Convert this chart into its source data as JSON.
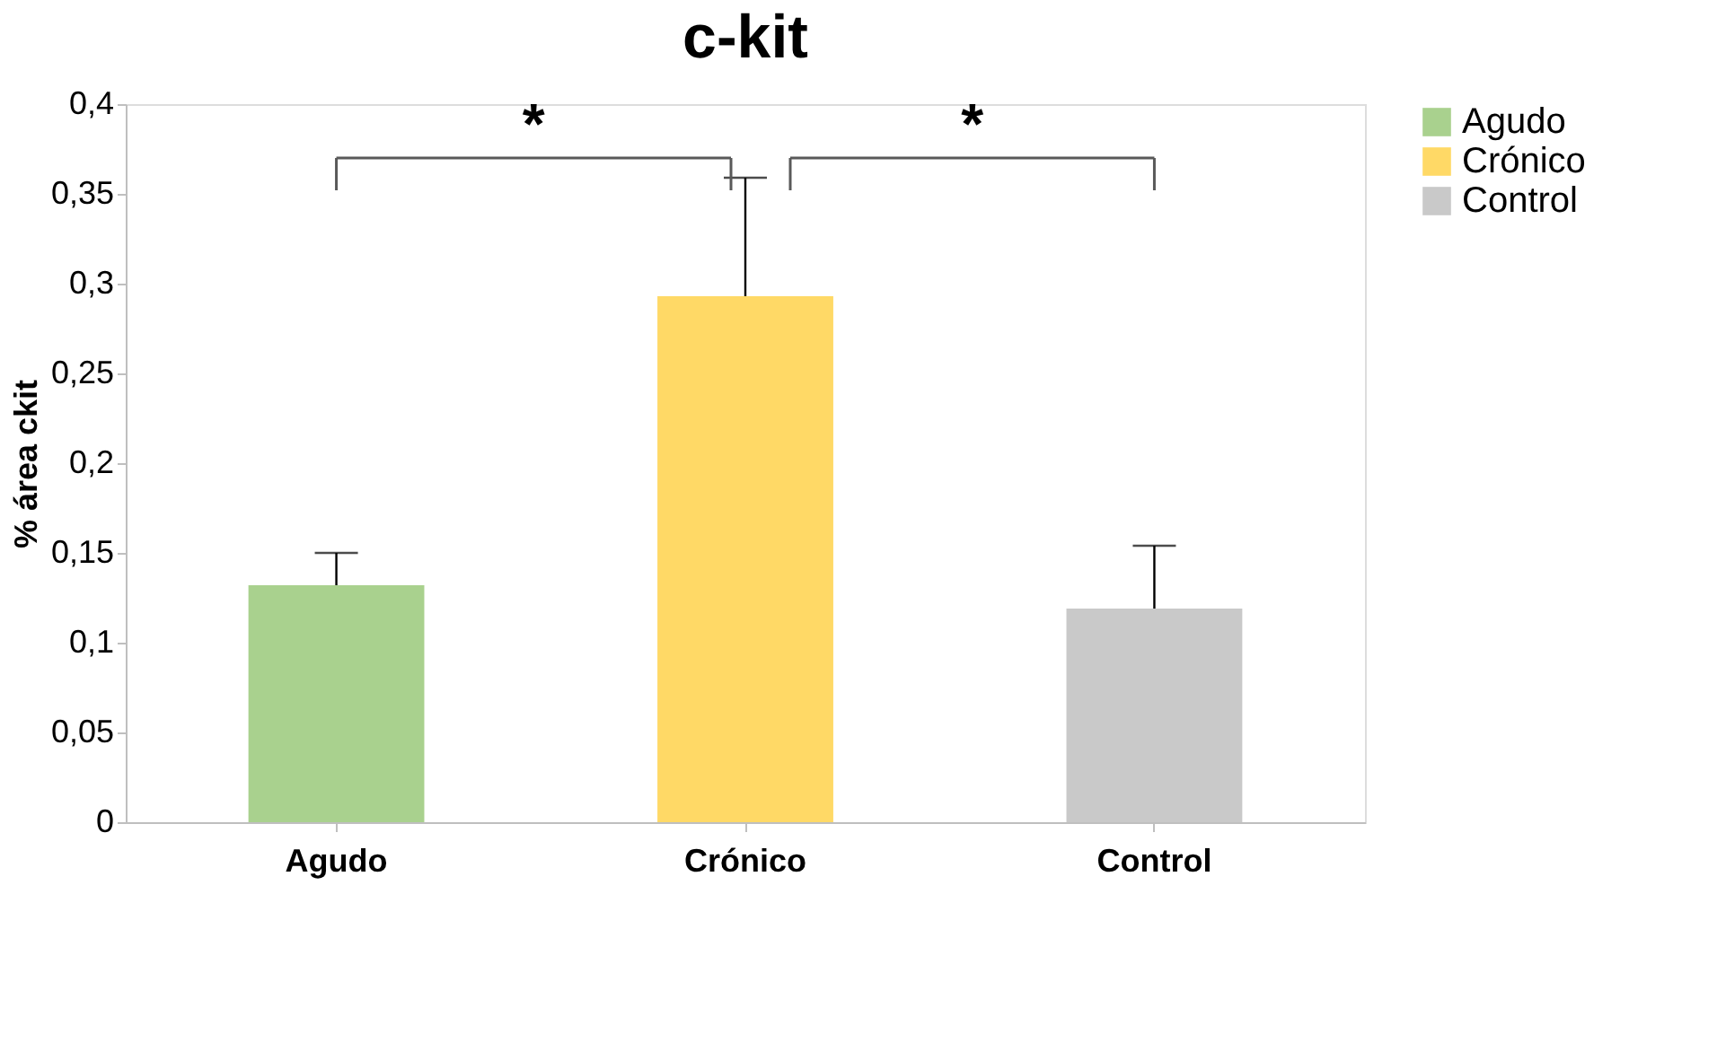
{
  "chart_data": {
    "type": "bar",
    "title": "c-kit",
    "ylabel": "% área ckit",
    "categories": [
      "Agudo",
      "Crónico",
      "Control"
    ],
    "stacked": true,
    "series": [
      {
        "name": "Agudo",
        "color": "#a9d18e",
        "values": [
          0.132,
          null,
          null
        ],
        "errors": [
          [
            0.132,
            0.15
          ],
          null,
          null
        ]
      },
      {
        "name": "Crónico",
        "color": "#ffd966",
        "values": [
          null,
          0.293,
          null
        ],
        "errors": [
          null,
          [
            0.293,
            0.359
          ],
          null
        ]
      },
      {
        "name": "Control",
        "color": "#c9c9c9",
        "values": [
          null,
          null,
          0.119
        ],
        "errors": [
          null,
          null,
          [
            0.119,
            0.154
          ]
        ]
      }
    ],
    "ylim": [
      0,
      0.4
    ],
    "yticks": [
      0,
      {
        "value": 0.05,
        "label": "0,05"
      },
      {
        "value": 0.1,
        "label": "0,1"
      },
      {
        "value": 0.15,
        "label": "0,15"
      },
      {
        "value": 0.2,
        "label": "0,2"
      },
      {
        "value": 0.25,
        "label": "0,25"
      },
      {
        "value": 0.3,
        "label": "0,3"
      },
      {
        "value": 0.35,
        "label": "0,35"
      },
      {
        "value": 0.4,
        "label": "0,4"
      }
    ],
    "annotations": [
      "*",
      "*"
    ],
    "grid": false,
    "legend": "right"
  }
}
